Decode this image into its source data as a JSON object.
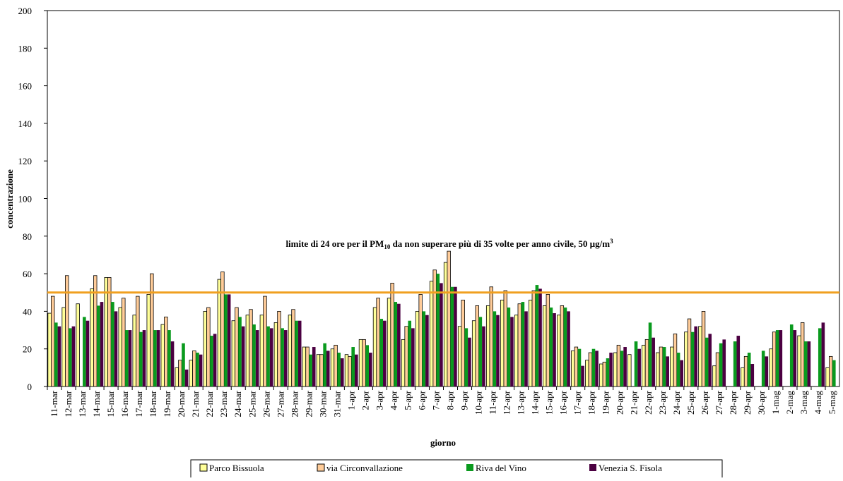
{
  "chart_data": {
    "type": "bar",
    "categories": [
      "11-mar",
      "12-mar",
      "13-mar",
      "14-mar",
      "15-mar",
      "16-mar",
      "17-mar",
      "18-mar",
      "19-mar",
      "20-mar",
      "21-mar",
      "22-mar",
      "23-mar",
      "24-mar",
      "25-mar",
      "26-mar",
      "27-mar",
      "28-mar",
      "29-mar",
      "30-mar",
      "31-mar",
      "1-apr",
      "2-apr",
      "3-apr",
      "4-apr",
      "5-apr",
      "6-apr",
      "7-apr",
      "8-apr",
      "9-apr",
      "10-apr",
      "11-apr",
      "12-apr",
      "13-apr",
      "14-apr",
      "15-apr",
      "16-apr",
      "17-apr",
      "18-apr",
      "19-apr",
      "20-apr",
      "21-apr",
      "22-apr",
      "23-apr",
      "24-apr",
      "25-apr",
      "26-apr",
      "27-apr",
      "28-apr",
      "29-apr",
      "30-apr",
      "1-mag",
      "2-mag",
      "3-mag",
      "4-mag",
      "5-mag"
    ],
    "series": [
      {
        "name": "Parco Bissuola",
        "color": "#ffff99",
        "values": [
          39,
          42,
          44,
          52,
          58,
          42,
          38,
          49,
          33,
          10,
          14,
          40,
          57,
          35,
          38,
          38,
          34,
          38,
          21,
          17,
          20,
          17,
          25,
          42,
          47,
          25,
          40,
          56,
          66,
          32,
          35,
          43,
          46,
          38,
          46,
          43,
          38,
          19,
          14,
          12,
          18,
          17,
          22,
          18,
          21,
          29,
          32,
          11,
          null,
          10,
          null,
          20,
          null,
          27,
          null,
          10
        ]
      },
      {
        "name": "via Circonvallazione",
        "color": "#ffcc99",
        "values": [
          48,
          59,
          null,
          59,
          58,
          47,
          48,
          60,
          37,
          14,
          19,
          42,
          61,
          42,
          41,
          48,
          40,
          41,
          21,
          17,
          22,
          16,
          25,
          47,
          55,
          32,
          49,
          62,
          72,
          46,
          43,
          53,
          51,
          44,
          51,
          49,
          43,
          21,
          18,
          13,
          22,
          null,
          25,
          21,
          28,
          36,
          40,
          18,
          null,
          16,
          null,
          29,
          null,
          34,
          null,
          16
        ]
      },
      {
        "name": "Riva del Vino",
        "color": "#0a9a1e",
        "values": [
          34,
          31,
          37,
          43,
          45,
          30,
          29,
          30,
          30,
          23,
          18,
          27,
          49,
          37,
          33,
          32,
          31,
          35,
          17,
          23,
          18,
          21,
          22,
          36,
          45,
          35,
          40,
          60,
          53,
          31,
          37,
          40,
          42,
          45,
          54,
          42,
          42,
          20,
          20,
          15,
          19,
          24,
          34,
          21,
          18,
          29,
          26,
          23,
          24,
          18,
          19,
          30,
          33,
          24,
          31,
          14
        ]
      },
      {
        "name": "Venezia S. Fisola",
        "color": "#4b0041",
        "values": [
          32,
          32,
          35,
          45,
          40,
          30,
          30,
          30,
          24,
          9,
          17,
          28,
          49,
          32,
          30,
          31,
          30,
          35,
          21,
          19,
          15,
          17,
          18,
          35,
          44,
          31,
          38,
          55,
          53,
          26,
          32,
          38,
          37,
          40,
          52,
          39,
          40,
          11,
          19,
          18,
          21,
          20,
          26,
          16,
          14,
          32,
          28,
          25,
          27,
          12,
          16,
          30,
          30,
          24,
          34,
          null
        ]
      }
    ],
    "ylim": [
      0,
      200
    ],
    "yticks": [
      0,
      20,
      40,
      60,
      80,
      100,
      120,
      140,
      160,
      180,
      200
    ],
    "y_label": "concentrazione",
    "x_label": "giorno",
    "limit": {
      "value": 50,
      "color": "#f0a020",
      "label_parts": [
        "limite di 24 ore per il PM",
        "10",
        " da non superare più di 35 volte per anno civile, 50 µg/m",
        "3"
      ]
    }
  }
}
